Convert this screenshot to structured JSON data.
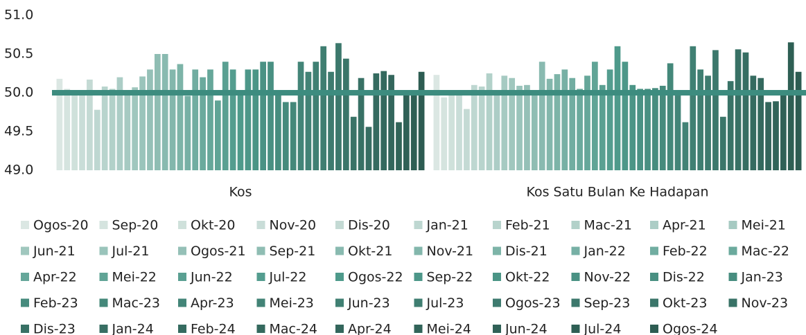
{
  "chart_data": {
    "type": "bar",
    "categories": [
      "Kos",
      "Kos Satu Bulan Ke Hadapan"
    ],
    "ylim": [
      49,
      51
    ],
    "yticks": [
      {
        "value": 49,
        "label": "49.0"
      },
      {
        "value": 49.5,
        "label": "49.5"
      },
      {
        "value": 50,
        "label": "50.0"
      },
      {
        "value": 50.5,
        "label": "50.5"
      },
      {
        "value": 51,
        "label": "51.0"
      }
    ],
    "grid": false,
    "reference_line": {
      "value": 50,
      "color": "#3d8c7f"
    },
    "series": [
      {
        "name": "Ogos-20",
        "color": "#dbe7e3",
        "values": [
          50.18,
          50.23
        ]
      },
      {
        "name": "Sep-20",
        "color": "#d5e4df",
        "values": [
          50.05,
          49.94
        ]
      },
      {
        "name": "Okt-20",
        "color": "#cfe1db",
        "values": [
          50.03,
          50.02
        ]
      },
      {
        "name": "Nov-20",
        "color": "#c9ddd8",
        "values": [
          50.03,
          50.0
        ]
      },
      {
        "name": "Dis-20",
        "color": "#c4dad4",
        "values": [
          50.17,
          49.79
        ]
      },
      {
        "name": "Jan-21",
        "color": "#bed7d1",
        "values": [
          49.78,
          50.1
        ]
      },
      {
        "name": "Feb-21",
        "color": "#b8d4cd",
        "values": [
          50.08,
          50.08
        ]
      },
      {
        "name": "Mac-21",
        "color": "#b2d1c9",
        "values": [
          50.05,
          50.25
        ]
      },
      {
        "name": "Apr-21",
        "color": "#accdc6",
        "values": [
          50.2,
          50.0
        ]
      },
      {
        "name": "Mei-21",
        "color": "#a6cac2",
        "values": [
          50.03,
          50.22
        ]
      },
      {
        "name": "Jun-21",
        "color": "#a0c7be",
        "values": [
          50.07,
          50.19
        ]
      },
      {
        "name": "Jul-21",
        "color": "#9ac4bb",
        "values": [
          50.21,
          50.09
        ]
      },
      {
        "name": "Ogos-21",
        "color": "#95c0b7",
        "values": [
          50.3,
          50.1
        ]
      },
      {
        "name": "Sep-21",
        "color": "#8fbdb3",
        "values": [
          50.5,
          50.0
        ]
      },
      {
        "name": "Okt-21",
        "color": "#89bab0",
        "values": [
          50.5,
          50.4
        ]
      },
      {
        "name": "Nov-21",
        "color": "#83b7ac",
        "values": [
          50.3,
          50.18
        ]
      },
      {
        "name": "Dis-21",
        "color": "#7db4a8",
        "values": [
          50.37,
          50.24
        ]
      },
      {
        "name": "Jan-22",
        "color": "#77b0a5",
        "values": [
          49.96,
          50.3
        ]
      },
      {
        "name": "Feb-22",
        "color": "#71ada1",
        "values": [
          50.3,
          50.19
        ]
      },
      {
        "name": "Mac-22",
        "color": "#6baa9d",
        "values": [
          50.2,
          50.05
        ]
      },
      {
        "name": "Apr-22",
        "color": "#66a79a",
        "values": [
          50.3,
          50.22
        ]
      },
      {
        "name": "Mei-22",
        "color": "#60a496",
        "values": [
          49.9,
          50.4
        ]
      },
      {
        "name": "Jun-22",
        "color": "#5aa092",
        "values": [
          50.4,
          50.1
        ]
      },
      {
        "name": "Jul-22",
        "color": "#549d8f",
        "values": [
          50.3,
          50.3
        ]
      },
      {
        "name": "Ogos-22",
        "color": "#4e9a8b",
        "values": [
          50.0,
          50.6
        ]
      },
      {
        "name": "Sep-22",
        "color": "#4d9789",
        "values": [
          50.3,
          50.4
        ]
      },
      {
        "name": "Okt-22",
        "color": "#4b9586",
        "values": [
          50.3,
          50.1
        ]
      },
      {
        "name": "Nov-22",
        "color": "#4a9284",
        "values": [
          50.4,
          50.05
        ]
      },
      {
        "name": "Dis-22",
        "color": "#499082",
        "values": [
          50.4,
          50.05
        ]
      },
      {
        "name": "Jan-23",
        "color": "#478d7f",
        "values": [
          50.0,
          50.06
        ]
      },
      {
        "name": "Feb-23",
        "color": "#468b7d",
        "values": [
          49.88,
          50.09
        ]
      },
      {
        "name": "Mac-23",
        "color": "#44887a",
        "values": [
          49.88,
          50.38
        ]
      },
      {
        "name": "Apr-23",
        "color": "#438578",
        "values": [
          50.4,
          50.0
        ]
      },
      {
        "name": "Mei-23",
        "color": "#428376",
        "values": [
          50.27,
          49.62
        ]
      },
      {
        "name": "Jun-23",
        "color": "#408073",
        "values": [
          50.4,
          50.6
        ]
      },
      {
        "name": "Jul-23",
        "color": "#3f7e71",
        "values": [
          50.6,
          50.3
        ]
      },
      {
        "name": "Ogos-23",
        "color": "#3e7b6f",
        "values": [
          50.27,
          50.22
        ]
      },
      {
        "name": "Sep-23",
        "color": "#3c786c",
        "values": [
          50.64,
          50.55
        ]
      },
      {
        "name": "Okt-23",
        "color": "#3b766a",
        "values": [
          50.44,
          49.69
        ]
      },
      {
        "name": "Nov-23",
        "color": "#397367",
        "values": [
          49.69,
          50.15
        ]
      },
      {
        "name": "Dis-23",
        "color": "#387165",
        "values": [
          50.19,
          50.56
        ]
      },
      {
        "name": "Jan-24",
        "color": "#376e63",
        "values": [
          49.56,
          50.52
        ]
      },
      {
        "name": "Feb-24",
        "color": "#356b60",
        "values": [
          50.25,
          50.22
        ]
      },
      {
        "name": "Mac-24",
        "color": "#34695e",
        "values": [
          50.28,
          50.19
        ]
      },
      {
        "name": "Apr-24",
        "color": "#33665c",
        "values": [
          50.23,
          49.88
        ]
      },
      {
        "name": "Mei-24",
        "color": "#316459",
        "values": [
          49.62,
          49.89
        ]
      },
      {
        "name": "Jun-24",
        "color": "#306157",
        "values": [
          50.0,
          50.0
        ]
      },
      {
        "name": "Jul-24",
        "color": "#2e5f54",
        "values": [
          50.0,
          50.65
        ]
      },
      {
        "name": "Ogos-24",
        "color": "#2d5c52",
        "values": [
          50.27,
          50.27
        ]
      }
    ]
  }
}
